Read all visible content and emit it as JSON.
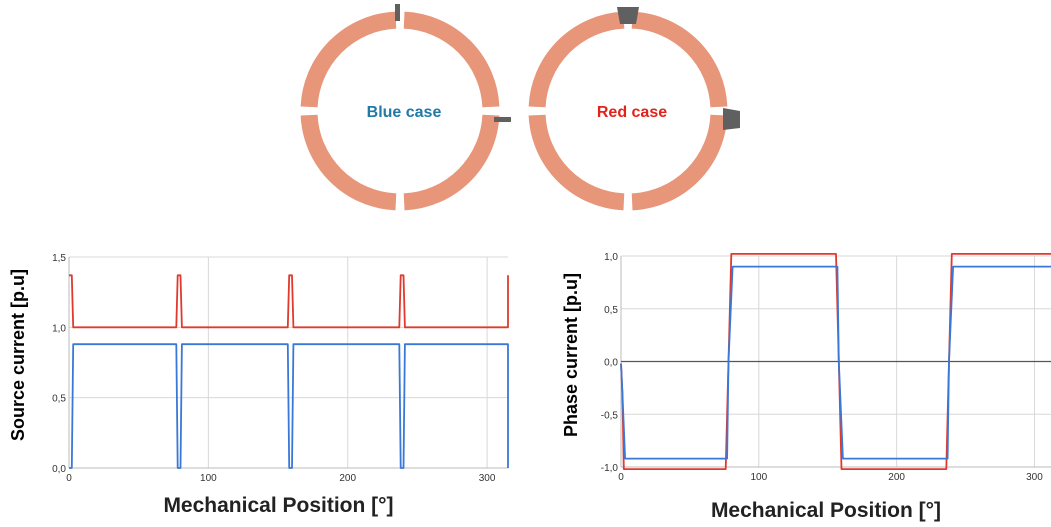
{
  "colors": {
    "ring": "#e8967a",
    "slot": "#606060",
    "blue": "#3a78d8",
    "red": "#e03a2e",
    "blue_label": "#1f7aa8",
    "red_label": "#e2231a",
    "grid": "#d8d8d8",
    "zero_line": "#555555"
  },
  "rings": [
    {
      "label": "Blue case"
    },
    {
      "label": "Red case"
    }
  ],
  "chart_data": [
    {
      "type": "line",
      "ylabel": "Source current [p.u]",
      "xlabel": "Mechanical Position [°]",
      "xlim": [
        0,
        315
      ],
      "ylim": [
        0,
        1.5
      ],
      "x_ticks": [
        0,
        100,
        200,
        300
      ],
      "x_tick_labels": [
        "0",
        "100",
        "200",
        "300"
      ],
      "y_ticks": [
        0,
        0.5,
        1.0,
        1.5
      ],
      "y_tick_labels": [
        "0,0",
        "0,5",
        "1,0",
        "1,5"
      ],
      "grid": true,
      "series": [
        {
          "color": "red",
          "points": [
            [
              0,
              1.37
            ],
            [
              2,
              1.37
            ],
            [
              3,
              1.0
            ],
            [
              77,
              1.0
            ],
            [
              78,
              1.37
            ],
            [
              80,
              1.37
            ],
            [
              81,
              1.0
            ],
            [
              157,
              1.0
            ],
            [
              158,
              1.37
            ],
            [
              160,
              1.37
            ],
            [
              161,
              1.0
            ],
            [
              237,
              1.0
            ],
            [
              238,
              1.37
            ],
            [
              240,
              1.37
            ],
            [
              241,
              1.0
            ],
            [
              317,
              1.0
            ],
            [
              318,
              1.37
            ],
            [
              320,
              1.37
            ]
          ]
        },
        {
          "color": "blue",
          "points": [
            [
              0,
              0.0
            ],
            [
              2,
              0.0
            ],
            [
              3,
              0.88
            ],
            [
              77,
              0.88
            ],
            [
              78,
              0.0
            ],
            [
              80,
              0.0
            ],
            [
              81,
              0.88
            ],
            [
              157,
              0.88
            ],
            [
              158,
              0.0
            ],
            [
              160,
              0.0
            ],
            [
              161,
              0.88
            ],
            [
              237,
              0.88
            ],
            [
              238,
              0.0
            ],
            [
              240,
              0.0
            ],
            [
              241,
              0.88
            ],
            [
              317,
              0.88
            ],
            [
              318,
              0.0
            ],
            [
              320,
              0.0
            ]
          ]
        }
      ]
    },
    {
      "type": "line",
      "ylabel": "Phase current [p.u]",
      "xlabel": "Mechanical Position [°]",
      "xlim": [
        0,
        312
      ],
      "ylim": [
        -1.0,
        1.0
      ],
      "x_ticks": [
        0,
        100,
        200,
        300
      ],
      "x_tick_labels": [
        "0",
        "100",
        "200",
        "300"
      ],
      "y_ticks": [
        -1.0,
        -0.5,
        0.0,
        0.5,
        1.0
      ],
      "y_tick_labels": [
        "-1,0",
        "-0,5",
        "0,0",
        "0,5",
        "1,0"
      ],
      "grid": true,
      "zero_line": true,
      "series": [
        {
          "color": "red",
          "points": [
            [
              0,
              -0.02
            ],
            [
              1,
              -0.3
            ],
            [
              2,
              -1.02
            ],
            [
              76,
              -1.02
            ],
            [
              78,
              0.0
            ],
            [
              80,
              1.02
            ],
            [
              156,
              1.02
            ],
            [
              158,
              0.0
            ],
            [
              160,
              -1.02
            ],
            [
              236,
              -1.02
            ],
            [
              238,
              0.0
            ],
            [
              240,
              1.02
            ],
            [
              312,
              1.02
            ]
          ]
        },
        {
          "color": "blue",
          "points": [
            [
              0,
              -0.02
            ],
            [
              1,
              -0.3
            ],
            [
              3,
              -0.92
            ],
            [
              77,
              -0.92
            ],
            [
              78,
              0.0
            ],
            [
              81,
              0.9
            ],
            [
              157,
              0.9
            ],
            [
              158,
              0.0
            ],
            [
              161,
              -0.92
            ],
            [
              237,
              -0.92
            ],
            [
              238,
              0.0
            ],
            [
              241,
              0.9
            ],
            [
              312,
              0.9
            ]
          ]
        }
      ]
    }
  ]
}
